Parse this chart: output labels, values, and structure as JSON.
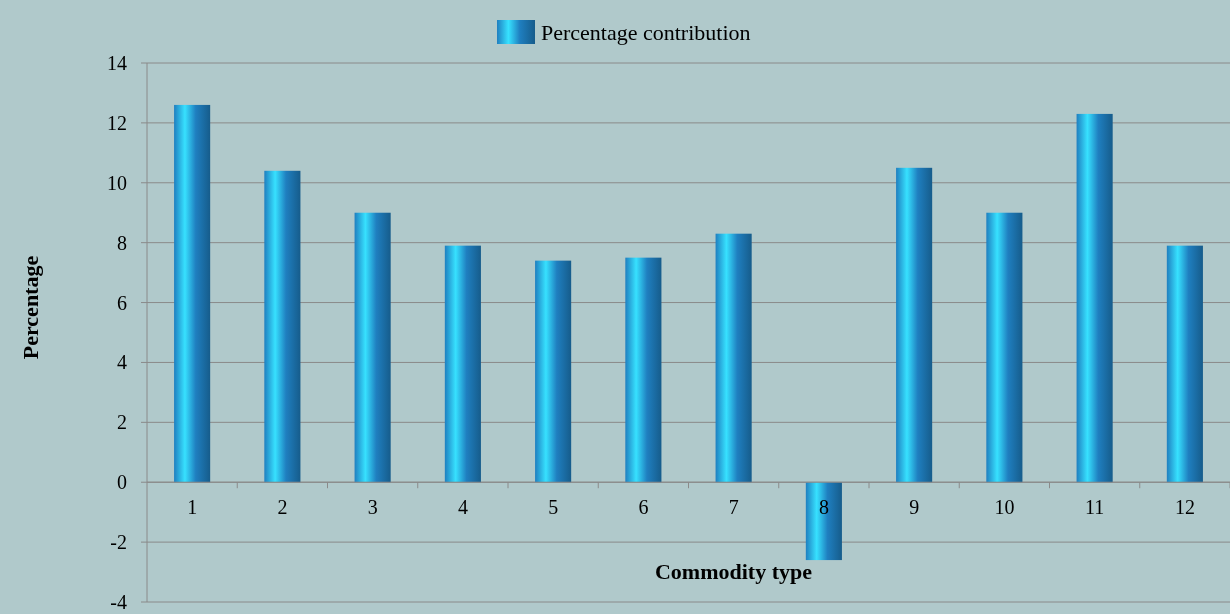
{
  "chart_data": {
    "type": "bar",
    "xlabel": "Commodity type",
    "ylabel": "Percentage",
    "categories": [
      "1",
      "2",
      "3",
      "4",
      "5",
      "6",
      "7",
      "8",
      "9",
      "10",
      "11",
      "12"
    ],
    "series": [
      {
        "name": "Percentage contribution",
        "color": "#1f7fc0",
        "values": [
          12.6,
          10.4,
          9.0,
          7.9,
          7.4,
          7.5,
          8.3,
          -2.6,
          10.5,
          9.0,
          12.3,
          7.9
        ]
      }
    ],
    "ylim": [
      -4,
      14
    ],
    "yticks": [
      -4,
      -2,
      0,
      2,
      4,
      6,
      8,
      10,
      12,
      14
    ],
    "grid": "y",
    "legend": "top"
  }
}
